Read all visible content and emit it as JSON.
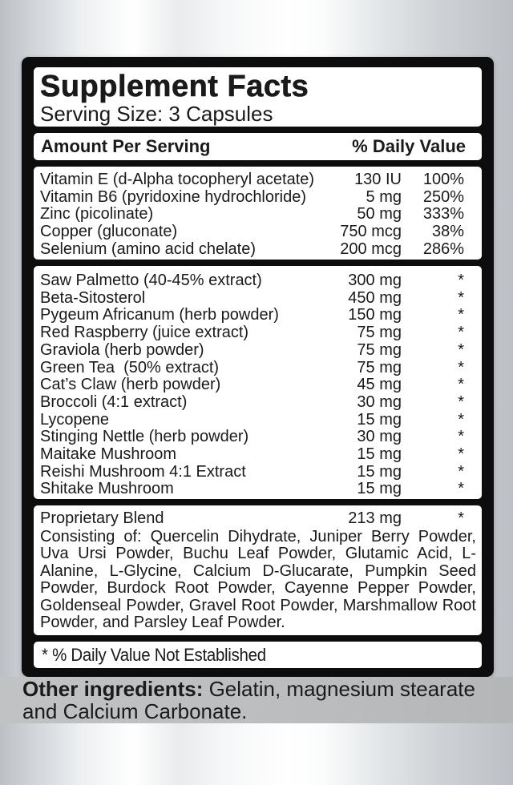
{
  "label": {
    "title": "Supplement Facts",
    "serving_size": "Serving Size: 3 Capsules",
    "columns": {
      "amount_header": "Amount Per Serving",
      "daily_value_header": "% Daily Value"
    },
    "sections": {
      "vitamins": {
        "rows": [
          {
            "name": "Vitamin E (d-Alpha tocopheryl acetate)",
            "amount": "130 IU",
            "dv": "100%"
          },
          {
            "name": "Vitamin B6 (pyridoxine hydrochloride)",
            "amount": "5 mg",
            "dv": "250%"
          },
          {
            "name": "Zinc (picolinate)",
            "amount": "50 mg",
            "dv": "333%"
          },
          {
            "name": "Copper (gluconate)",
            "amount": "750 mcg",
            "dv": "38%"
          },
          {
            "name": "Selenium (amino acid chelate)",
            "amount": "200 mcg",
            "dv": "286%"
          }
        ]
      },
      "herbs": {
        "rows": [
          {
            "name": "Saw Palmetto (40-45% extract)",
            "amount": "300 mg",
            "dv": "*"
          },
          {
            "name": "Beta-Sitosterol",
            "amount": "450 mg",
            "dv": "*"
          },
          {
            "name": "Pygeum Africanum (herb powder)",
            "amount": "150 mg",
            "dv": "*"
          },
          {
            "name": "Red Raspberry (juice extract)",
            "amount": "75 mg",
            "dv": "*"
          },
          {
            "name": "Graviola (herb powder)",
            "amount": "75 mg",
            "dv": "*"
          },
          {
            "name": "Green Tea  (50% extract)",
            "amount": "75 mg",
            "dv": "*"
          },
          {
            "name": "Cat’s Claw (herb powder)",
            "amount": "45 mg",
            "dv": "*"
          },
          {
            "name": "Broccoli (4:1 extract)",
            "amount": "30 mg",
            "dv": "*"
          },
          {
            "name": "Lycopene",
            "amount": "15 mg",
            "dv": "*"
          },
          {
            "name": "Stinging Nettle (herb powder)",
            "amount": "30 mg",
            "dv": "*"
          },
          {
            "name": "Maitake Mushroom",
            "amount": "15 mg",
            "dv": "*"
          },
          {
            "name": "Reishi Mushroom 4:1 Extract",
            "amount": "15 mg",
            "dv": "*"
          },
          {
            "name": "Shitake Mushroom",
            "amount": "15 mg",
            "dv": "*"
          }
        ]
      },
      "blend": {
        "rows": [
          {
            "name": "Proprietary Blend",
            "amount": "213 mg",
            "dv": "*"
          }
        ],
        "description": "Consisting of: Quercelin Dihydrate, Juniper Berry Powder, Uva Ursi Powder, Buchu Leaf Powder, Glutamic Acid, L-Alanine, L-Glycine, Calcium D-Glucarate, Pumpkin Seed Powder, Burdock Root Powder, Cayenne Pepper Powder, Goldenseal Powder, Gravel Root Powder, Marshmallow Root Powder, and Parsley Leaf Powder."
      }
    },
    "footnote": "* % Daily Value Not Established",
    "other_ingredients": {
      "label": "Other ingredients:",
      "text": " Gelatin, magnesium stearate and Calcium Carbonate."
    }
  },
  "colors": {
    "panel_black": "#0d0d0d",
    "box_white": "#ffffff",
    "text": "#1a1a1a",
    "band_gray": "#bbbdbf",
    "background_silver": "#bcc0c5"
  }
}
